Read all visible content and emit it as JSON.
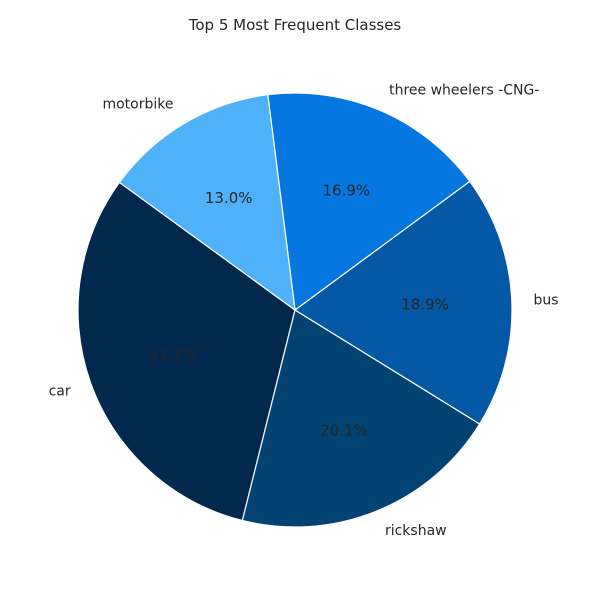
{
  "chart_data": {
    "type": "pie",
    "title": "Top 5 Most Frequent Classes",
    "start_angle_deg": 144,
    "direction": "counterclockwise",
    "slices": [
      {
        "label": "car",
        "value": 31.1,
        "pct_label": "31.1%",
        "color": "#03284d"
      },
      {
        "label": "rickshaw",
        "value": 20.1,
        "pct_label": "20.1%",
        "color": "#034373"
      },
      {
        "label": "bus",
        "value": 18.9,
        "pct_label": "18.9%",
        "color": "#0458a5"
      },
      {
        "label": "three wheelers -CNG-",
        "value": 16.9,
        "pct_label": "16.9%",
        "color": "#0676e0"
      },
      {
        "label": "motorbike",
        "value": 13.0,
        "pct_label": "13.0%",
        "color": "#4fb1fa"
      }
    ]
  }
}
